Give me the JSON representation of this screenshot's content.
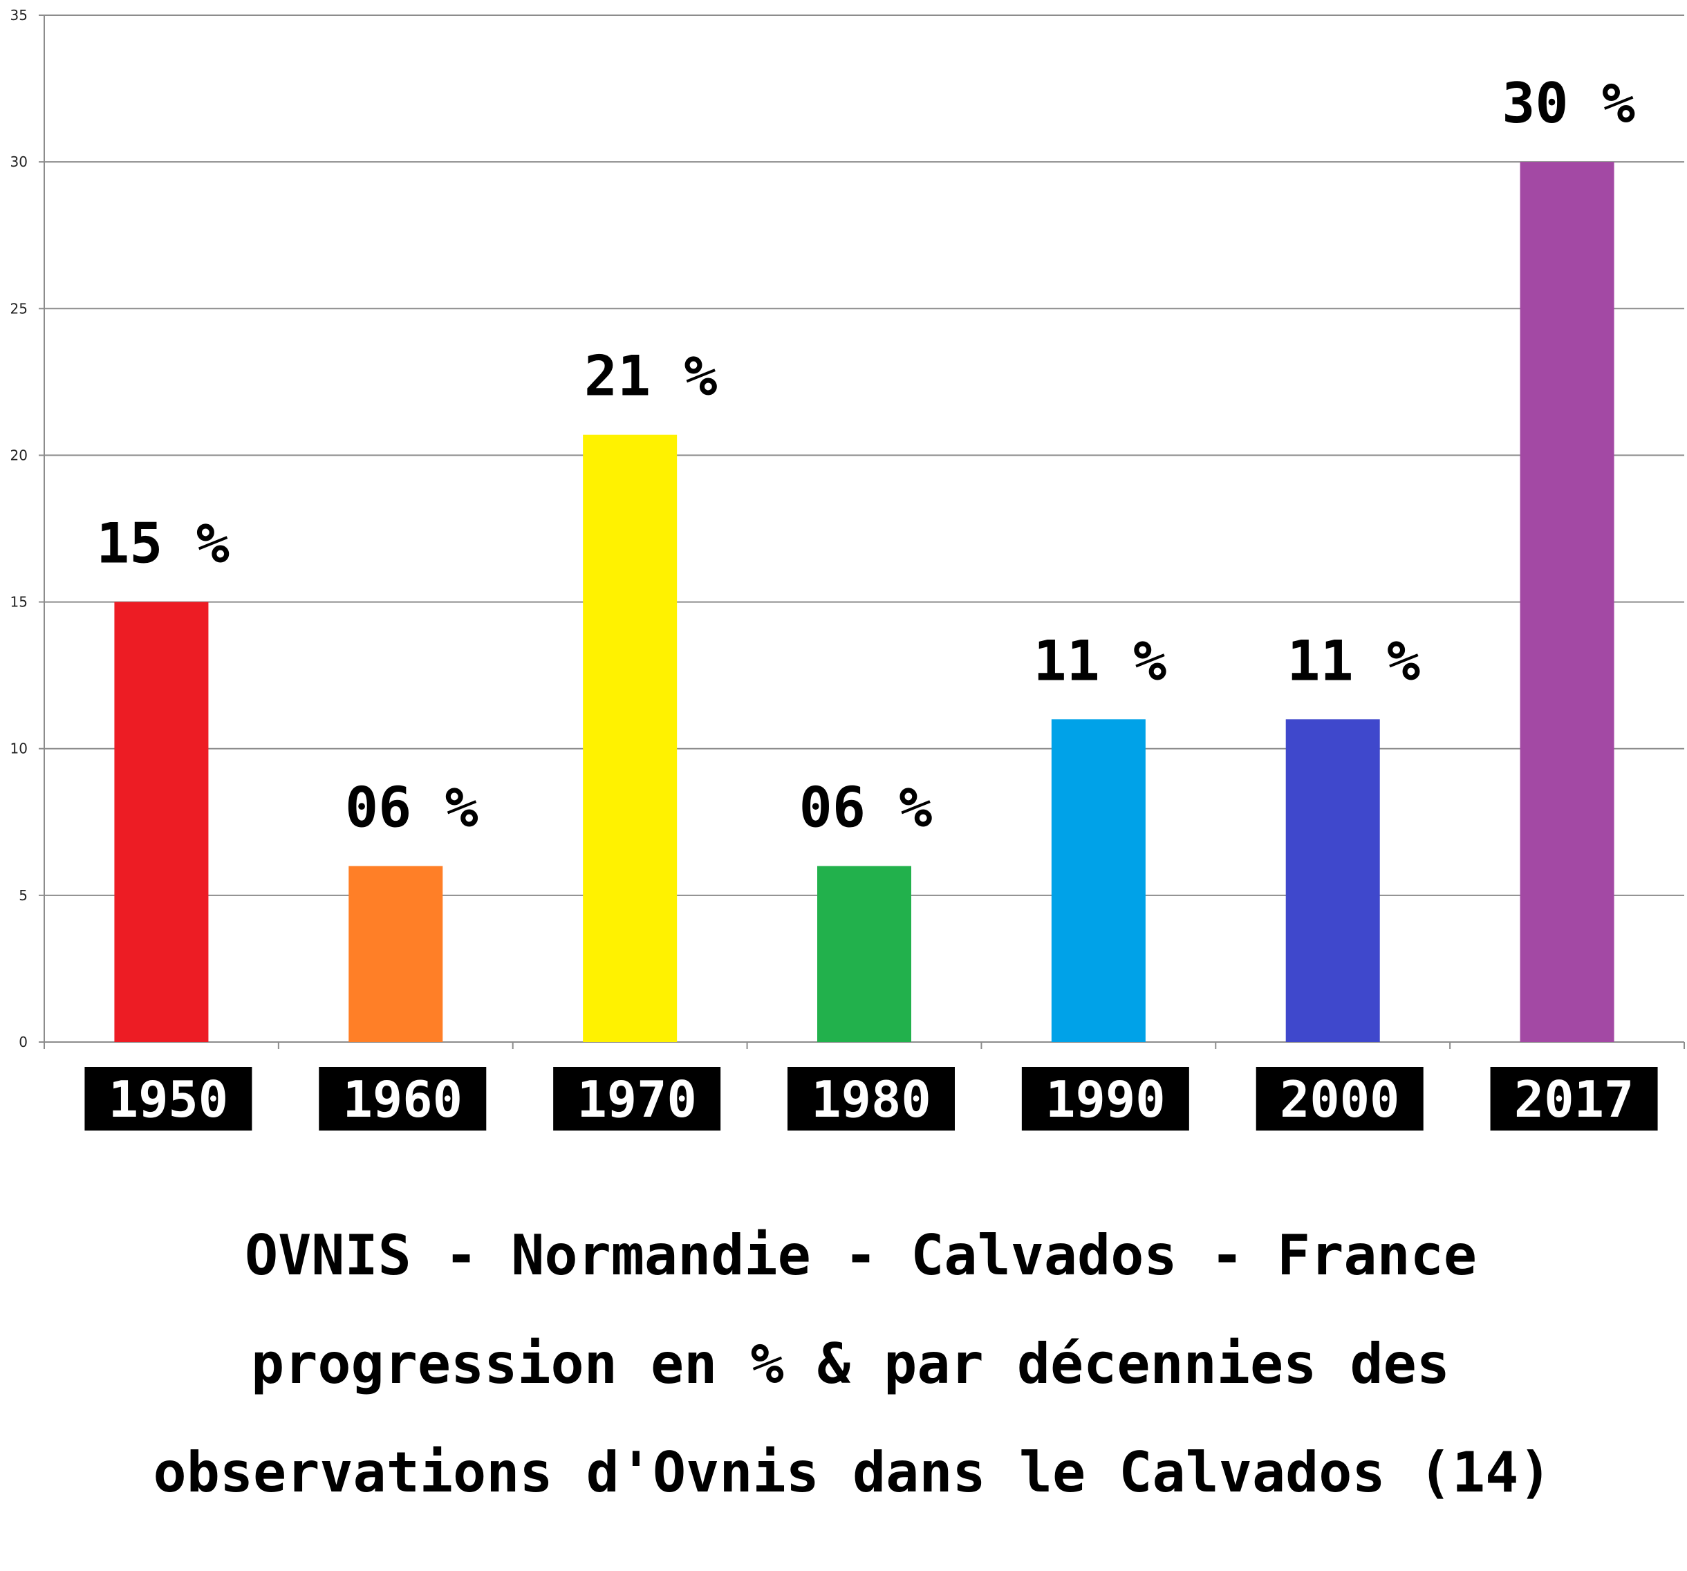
{
  "chart_data": {
    "type": "bar",
    "categories": [
      "1950",
      "1960",
      "1970",
      "1980",
      "1990",
      "2000",
      "2017"
    ],
    "values": [
      15,
      6,
      20.7,
      6,
      11,
      11,
      30
    ],
    "data_labels": [
      "15 %",
      "06 %",
      "21 %",
      "06 %",
      "11 %",
      "11 %",
      "30 %"
    ],
    "colors": [
      "#ed1c24",
      "#ff7f27",
      "#fff200",
      "#22b14c",
      "#00a2e8",
      "#3f48cc",
      "#a349a4"
    ],
    "ylim": [
      0,
      35
    ],
    "yticks": [
      0,
      5,
      10,
      15,
      20,
      25,
      30,
      35
    ],
    "grid": true,
    "title_lines": [
      "OVNIS - Normandie - Calvados - France",
      "progression en % & par décennies des",
      "observations d'Ovnis dans le Calvados (14)"
    ],
    "xlabel": "",
    "ylabel": ""
  }
}
